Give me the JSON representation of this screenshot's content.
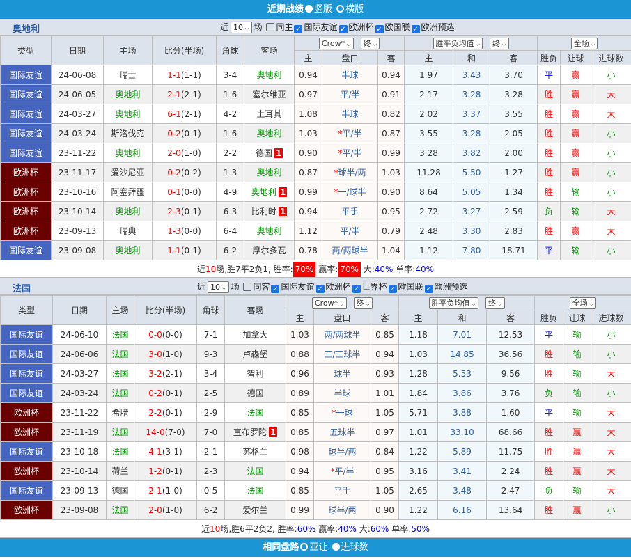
{
  "top_bar": {
    "title": "近期战绩",
    "opt1": "竖版",
    "opt2": "横版"
  },
  "bottom_bar": {
    "title": "相同盘路",
    "opt1": "亚让",
    "opt2": "进球数"
  },
  "headers": {
    "type": "类型",
    "date": "日期",
    "home": "主场",
    "score": "比分(半场)",
    "corner": "角球",
    "away": "客场",
    "company": "Crow*",
    "final": "终",
    "avg": "胜平负均值",
    "final2": "终",
    "scope": "全场",
    "h": "主",
    "line": "盘口",
    "a": "客",
    "h2": "主",
    "d": "和",
    "a2": "客",
    "wl": "胜负",
    "hc": "让球",
    "ou": "进球数"
  },
  "sections": [
    {
      "team": "奥地利",
      "near": "近",
      "count": "10",
      "field": "场",
      "same": "同主",
      "filters": [
        "国际友谊",
        "欧洲杯",
        "欧国联",
        "欧洲预选"
      ],
      "rows": [
        [
          "国际友谊",
          "24-06-08",
          "瑞士",
          "1-1",
          "(1-1)",
          "3-4",
          "奥地利",
          "",
          "0.94",
          "半球",
          "0.94",
          "1.97",
          "3.43",
          "3.70",
          "平",
          "赢",
          "小"
        ],
        [
          "国际友谊",
          "24-06-05",
          "奥地利",
          "2-1",
          "(2-1)",
          "1-6",
          "塞尔维亚",
          "",
          "0.97",
          "平/半",
          "0.91",
          "2.17",
          "3.28",
          "3.28",
          "胜",
          "赢",
          "大"
        ],
        [
          "国际友谊",
          "24-03-27",
          "奥地利",
          "6-1",
          "(2-1)",
          "4-2",
          "土耳其",
          "",
          "1.08",
          "半球",
          "0.82",
          "2.02",
          "3.37",
          "3.55",
          "胜",
          "赢",
          "大"
        ],
        [
          "国际友谊",
          "24-03-24",
          "斯洛伐克",
          "0-2",
          "(0-1)",
          "1-6",
          "奥地利",
          "",
          "1.03",
          "*平/半",
          "0.87",
          "3.55",
          "3.28",
          "2.05",
          "胜",
          "赢",
          "小"
        ],
        [
          "国际友谊",
          "23-11-22",
          "奥地利",
          "2-0",
          "(1-0)",
          "2-2",
          "德国",
          "1",
          "0.90",
          "*平/半",
          "0.99",
          "3.28",
          "3.82",
          "2.00",
          "胜",
          "赢",
          "小"
        ],
        [
          "欧洲杯",
          "23-11-17",
          "爱沙尼亚",
          "0-2",
          "(0-2)",
          "1-3",
          "奥地利",
          "",
          "0.87",
          "*球半/两",
          "1.03",
          "11.28",
          "5.50",
          "1.27",
          "胜",
          "赢",
          "小"
        ],
        [
          "欧洲杯",
          "23-10-16",
          "阿塞拜疆",
          "0-1",
          "(0-0)",
          "4-9",
          "奥地利",
          "1",
          "0.99",
          "*一/球半",
          "0.90",
          "8.64",
          "5.05",
          "1.34",
          "胜",
          "输",
          "小"
        ],
        [
          "欧洲杯",
          "23-10-14",
          "奥地利",
          "2-3",
          "(0-1)",
          "6-3",
          "比利时",
          "1",
          "0.94",
          "平手",
          "0.95",
          "2.72",
          "3.27",
          "2.59",
          "负",
          "输",
          "大"
        ],
        [
          "欧洲杯",
          "23-09-13",
          "瑞典",
          "1-3",
          "(0-0)",
          "6-4",
          "奥地利",
          "",
          "1.12",
          "平/半",
          "0.79",
          "2.48",
          "3.30",
          "2.83",
          "胜",
          "赢",
          "大"
        ],
        [
          "国际友谊",
          "23-09-08",
          "奥地利",
          "1-1",
          "(0-1)",
          "6-2",
          "摩尔多瓦",
          "",
          "0.78",
          "两/两球半",
          "1.04",
          "1.12",
          "7.80",
          "18.71",
          "平",
          "输",
          "小"
        ]
      ],
      "summary": {
        "a": "近",
        "n": "10",
        "b": "场,胜7平2负1, 胜率:",
        "win": "70%",
        "c": " 赢率:",
        "cover": "70%",
        "d": " 大:",
        "over": "40%",
        "e": " 单率:",
        "odd": "40%",
        "highlight": true
      }
    },
    {
      "team": "法国",
      "near": "近",
      "count": "10",
      "field": "场",
      "same": "同客",
      "filters": [
        "国际友谊",
        "欧洲杯",
        "世界杯",
        "欧国联",
        "欧洲预选"
      ],
      "rows": [
        [
          "国际友谊",
          "24-06-10",
          "法国",
          "0-0",
          "(0-0)",
          "7-1",
          "加拿大",
          "",
          "1.03",
          "两/两球半",
          "0.85",
          "1.18",
          "7.01",
          "12.53",
          "平",
          "输",
          "小"
        ],
        [
          "国际友谊",
          "24-06-06",
          "法国",
          "3-0",
          "(1-0)",
          "9-3",
          "卢森堡",
          "",
          "0.88",
          "三/三球半",
          "0.94",
          "1.03",
          "14.85",
          "36.56",
          "胜",
          "输",
          "小"
        ],
        [
          "国际友谊",
          "24-03-27",
          "法国",
          "3-2",
          "(2-1)",
          "3-4",
          "智利",
          "",
          "0.96",
          "球半",
          "0.93",
          "1.28",
          "5.53",
          "9.56",
          "胜",
          "输",
          "大"
        ],
        [
          "国际友谊",
          "24-03-24",
          "法国",
          "0-2",
          "(0-1)",
          "2-5",
          "德国",
          "",
          "0.89",
          "半球",
          "1.01",
          "1.84",
          "3.86",
          "3.76",
          "负",
          "输",
          "小"
        ],
        [
          "欧洲杯",
          "23-11-22",
          "希腊",
          "2-2",
          "(0-1)",
          "2-9",
          "法国",
          "",
          "0.85",
          "*一球",
          "1.05",
          "5.71",
          "3.88",
          "1.60",
          "平",
          "输",
          "大"
        ],
        [
          "欧洲杯",
          "23-11-19",
          "法国",
          "14-0",
          "(7-0)",
          "7-0",
          "直布罗陀",
          "1",
          "0.85",
          "五球半",
          "0.97",
          "1.01",
          "33.10",
          "68.66",
          "胜",
          "赢",
          "大"
        ],
        [
          "国际友谊",
          "23-10-18",
          "法国",
          "4-1",
          "(3-1)",
          "2-1",
          "苏格兰",
          "",
          "0.98",
          "球半/两",
          "0.84",
          "1.22",
          "5.89",
          "11.75",
          "胜",
          "赢",
          "大"
        ],
        [
          "欧洲杯",
          "23-10-14",
          "荷兰",
          "1-2",
          "(0-1)",
          "2-3",
          "法国",
          "",
          "0.94",
          "*平/半",
          "0.95",
          "3.16",
          "3.41",
          "2.24",
          "胜",
          "赢",
          "大"
        ],
        [
          "国际友谊",
          "23-09-13",
          "德国",
          "2-1",
          "(1-0)",
          "0-5",
          "法国",
          "",
          "0.85",
          "平手",
          "1.05",
          "2.65",
          "3.48",
          "2.47",
          "负",
          "输",
          "大"
        ],
        [
          "欧洲杯",
          "23-09-08",
          "法国",
          "2-0",
          "(1-0)",
          "6-2",
          "爱尔兰",
          "",
          "0.99",
          "球半/两",
          "0.90",
          "1.22",
          "6.16",
          "13.64",
          "胜",
          "赢",
          "小"
        ]
      ],
      "summary": {
        "a": "近",
        "n": "10",
        "b": "场,胜6平2负2, 胜率:",
        "win": "60%",
        "c": " 赢率:",
        "cover": "40%",
        "d": " 大:",
        "over": "60%",
        "e": " 单率:",
        "odd": "50%",
        "highlight": false
      }
    }
  ],
  "colors": {
    "friendly": "#4565c0",
    "euro": "#6b0000",
    "team": "#009900",
    "loss": "#ff0000",
    "bar": "#1c95d4"
  }
}
